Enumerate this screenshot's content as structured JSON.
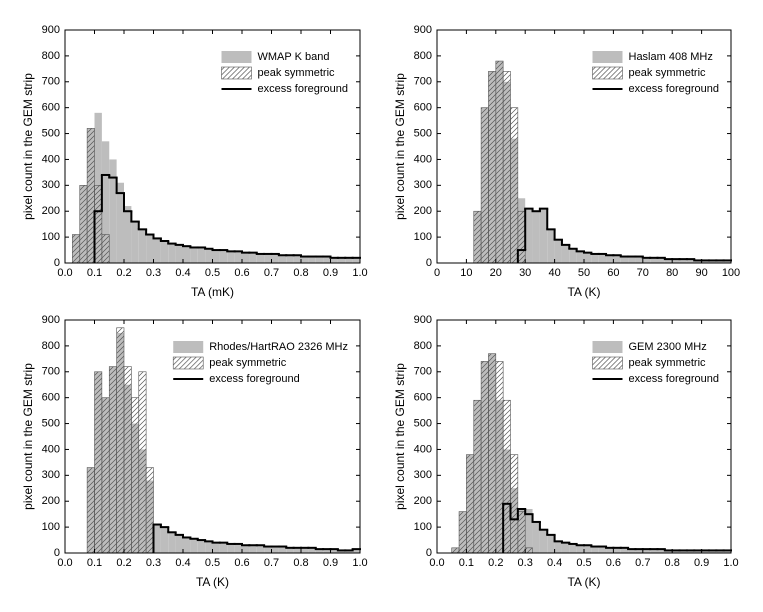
{
  "chart_data": [
    {
      "type": "histogram",
      "xlabel": "TA (mK)",
      "ylabel": "pixel count in the GEM strip",
      "legend": "upper right",
      "xlim": [
        0,
        1
      ],
      "xticks": [
        {
          "value": 0,
          "label": "0.0"
        },
        0.1,
        0.2,
        0.3,
        0.4,
        0.5,
        0.6,
        0.7,
        0.8,
        0.9,
        {
          "value": 1,
          "label": "1.0"
        }
      ],
      "ylim": [
        0,
        900
      ],
      "yticks": [
        0,
        100,
        200,
        300,
        400,
        500,
        600,
        700,
        800,
        900
      ],
      "bins": [
        0,
        0.025,
        0.05,
        0.075,
        0.1,
        0.125,
        0.15,
        0.175,
        0.2,
        0.225,
        0.25,
        0.275,
        0.3,
        0.325,
        0.35,
        0.375,
        0.4,
        0.425,
        0.45,
        0.475,
        0.5,
        0.525,
        0.55,
        0.575,
        0.6,
        0.625,
        0.65,
        0.675,
        0.7,
        0.725,
        0.75,
        0.775,
        0.8,
        0.825,
        0.85,
        0.875,
        0.9,
        0.925,
        0.95,
        0.975,
        1
      ],
      "series": [
        {
          "name": "WMAP K band",
          "style": "filled",
          "color": "#bdbdbd",
          "values": [
            0,
            110,
            300,
            520,
            580,
            470,
            400,
            310,
            220,
            160,
            130,
            110,
            95,
            85,
            75,
            70,
            65,
            60,
            60,
            55,
            50,
            50,
            45,
            45,
            40,
            40,
            35,
            35,
            35,
            30,
            30,
            30,
            25,
            25,
            25,
            25,
            20,
            20,
            20,
            20
          ]
        },
        {
          "name": "peak symmetric",
          "style": "hatched",
          "color": "#555555",
          "values": [
            0,
            110,
            300,
            520,
            300,
            110,
            0,
            0,
            0,
            0,
            0,
            0,
            0,
            0,
            0,
            0,
            0,
            0,
            0,
            0,
            0,
            0,
            0,
            0,
            0,
            0,
            0,
            0,
            0,
            0,
            0,
            0,
            0,
            0,
            0,
            0,
            0,
            0,
            0,
            0
          ]
        },
        {
          "name": "excess foreground",
          "style": "step",
          "color": "#000000",
          "values": [
            null,
            null,
            null,
            null,
            200,
            340,
            330,
            270,
            200,
            160,
            130,
            110,
            95,
            85,
            75,
            70,
            65,
            60,
            60,
            55,
            50,
            50,
            45,
            45,
            40,
            40,
            35,
            35,
            35,
            30,
            30,
            30,
            25,
            25,
            25,
            25,
            20,
            20,
            20,
            20
          ]
        }
      ]
    },
    {
      "type": "histogram",
      "xlabel": "TA (K)",
      "ylabel": "pixel count in the GEM strip",
      "legend": "upper right",
      "xlim": [
        0,
        100
      ],
      "xticks": [
        0,
        10,
        20,
        30,
        40,
        50,
        60,
        70,
        80,
        90,
        100
      ],
      "ylim": [
        0,
        900
      ],
      "yticks": [
        0,
        100,
        200,
        300,
        400,
        500,
        600,
        700,
        800,
        900
      ],
      "bins": [
        0,
        2.5,
        5,
        7.5,
        10,
        12.5,
        15,
        17.5,
        20,
        22.5,
        25,
        27.5,
        30,
        32.5,
        35,
        37.5,
        40,
        42.5,
        45,
        47.5,
        50,
        52.5,
        55,
        57.5,
        60,
        62.5,
        65,
        67.5,
        70,
        72.5,
        75,
        77.5,
        80,
        82.5,
        85,
        87.5,
        90,
        92.5,
        95,
        97.5,
        100
      ],
      "series": [
        {
          "name": "Haslam 408 MHz",
          "style": "filled",
          "color": "#bdbdbd",
          "values": [
            0,
            0,
            0,
            0,
            0,
            200,
            600,
            740,
            780,
            700,
            480,
            250,
            210,
            200,
            210,
            130,
            90,
            70,
            55,
            45,
            40,
            35,
            35,
            30,
            30,
            25,
            25,
            25,
            20,
            20,
            20,
            15,
            15,
            15,
            15,
            10,
            10,
            10,
            10,
            10
          ]
        },
        {
          "name": "peak symmetric",
          "style": "hatched",
          "color": "#555555",
          "values": [
            0,
            0,
            0,
            0,
            0,
            200,
            600,
            740,
            780,
            740,
            600,
            200,
            0,
            0,
            0,
            0,
            0,
            0,
            0,
            0,
            0,
            0,
            0,
            0,
            0,
            0,
            0,
            0,
            0,
            0,
            0,
            0,
            0,
            0,
            0,
            0,
            0,
            0,
            0,
            0
          ]
        },
        {
          "name": "excess foreground",
          "style": "step",
          "color": "#000000",
          "values": [
            null,
            null,
            null,
            null,
            null,
            null,
            null,
            null,
            null,
            null,
            null,
            50,
            210,
            200,
            210,
            130,
            90,
            70,
            55,
            45,
            40,
            35,
            35,
            30,
            30,
            25,
            25,
            25,
            20,
            20,
            20,
            15,
            15,
            15,
            15,
            10,
            10,
            10,
            10,
            10
          ]
        }
      ]
    },
    {
      "type": "histogram",
      "xlabel": "TA (K)",
      "ylabel": "pixel count in the GEM strip",
      "legend": "upper right",
      "xlim": [
        0,
        1
      ],
      "xticks": [
        {
          "value": 0,
          "label": "0.0"
        },
        0.1,
        0.2,
        0.3,
        0.4,
        0.5,
        0.6,
        0.7,
        0.8,
        0.9,
        {
          "value": 1,
          "label": "1.0"
        }
      ],
      "ylim": [
        0,
        900
      ],
      "yticks": [
        0,
        100,
        200,
        300,
        400,
        500,
        600,
        700,
        800,
        900
      ],
      "bins": [
        0,
        0.025,
        0.05,
        0.075,
        0.1,
        0.125,
        0.15,
        0.175,
        0.2,
        0.225,
        0.25,
        0.275,
        0.3,
        0.325,
        0.35,
        0.375,
        0.4,
        0.425,
        0.45,
        0.475,
        0.5,
        0.525,
        0.55,
        0.575,
        0.6,
        0.625,
        0.65,
        0.675,
        0.7,
        0.725,
        0.75,
        0.775,
        0.8,
        0.825,
        0.85,
        0.875,
        0.9,
        0.925,
        0.95,
        0.975,
        1
      ],
      "series": [
        {
          "name": "Rhodes/HartRAO 2326 MHz",
          "style": "filled",
          "color": "#bdbdbd",
          "values": [
            0,
            0,
            0,
            330,
            700,
            600,
            720,
            850,
            650,
            500,
            400,
            280,
            110,
            100,
            80,
            70,
            60,
            55,
            50,
            45,
            40,
            40,
            35,
            35,
            30,
            30,
            30,
            25,
            25,
            25,
            20,
            20,
            20,
            20,
            15,
            15,
            15,
            10,
            10,
            15
          ]
        },
        {
          "name": "peak symmetric",
          "style": "hatched",
          "color": "#555555",
          "values": [
            0,
            0,
            0,
            330,
            700,
            600,
            720,
            870,
            720,
            600,
            700,
            330,
            0,
            0,
            0,
            0,
            0,
            0,
            0,
            0,
            0,
            0,
            0,
            0,
            0,
            0,
            0,
            0,
            0,
            0,
            0,
            0,
            0,
            0,
            0,
            0,
            0,
            0,
            0,
            0
          ]
        },
        {
          "name": "excess foreground",
          "style": "step",
          "color": "#000000",
          "values": [
            null,
            null,
            null,
            null,
            null,
            null,
            null,
            null,
            null,
            null,
            null,
            null,
            110,
            100,
            80,
            70,
            60,
            55,
            50,
            45,
            40,
            40,
            35,
            35,
            30,
            30,
            30,
            25,
            25,
            25,
            20,
            20,
            20,
            20,
            15,
            15,
            15,
            10,
            10,
            15
          ]
        }
      ]
    },
    {
      "type": "histogram",
      "xlabel": "TA (K)",
      "ylabel": "pixel count in the GEM strip",
      "legend": "upper right",
      "xlim": [
        0,
        1
      ],
      "xticks": [
        {
          "value": 0,
          "label": "0.0"
        },
        0.1,
        0.2,
        0.3,
        0.4,
        0.5,
        0.6,
        0.7,
        0.8,
        0.9,
        {
          "value": 1,
          "label": "1.0"
        }
      ],
      "ylim": [
        0,
        900
      ],
      "yticks": [
        0,
        100,
        200,
        300,
        400,
        500,
        600,
        700,
        800,
        900
      ],
      "bins": [
        0,
        0.025,
        0.05,
        0.075,
        0.1,
        0.125,
        0.15,
        0.175,
        0.2,
        0.225,
        0.25,
        0.275,
        0.3,
        0.325,
        0.35,
        0.375,
        0.4,
        0.425,
        0.45,
        0.475,
        0.5,
        0.525,
        0.55,
        0.575,
        0.6,
        0.625,
        0.65,
        0.675,
        0.7,
        0.725,
        0.75,
        0.775,
        0.8,
        0.825,
        0.85,
        0.875,
        0.9,
        0.925,
        0.95,
        0.975,
        1
      ],
      "series": [
        {
          "name": "GEM 2300 MHz",
          "style": "filled",
          "color": "#bdbdbd",
          "values": [
            0,
            0,
            20,
            160,
            380,
            590,
            740,
            770,
            590,
            400,
            250,
            170,
            170,
            120,
            90,
            70,
            45,
            40,
            35,
            30,
            30,
            25,
            25,
            20,
            20,
            20,
            15,
            15,
            15,
            15,
            15,
            10,
            10,
            10,
            10,
            10,
            10,
            10,
            10,
            10
          ]
        },
        {
          "name": "peak symmetric",
          "style": "hatched",
          "color": "#555555",
          "values": [
            0,
            0,
            20,
            160,
            380,
            590,
            740,
            770,
            740,
            590,
            380,
            160,
            20,
            0,
            0,
            0,
            0,
            0,
            0,
            0,
            0,
            0,
            0,
            0,
            0,
            0,
            0,
            0,
            0,
            0,
            0,
            0,
            0,
            0,
            0,
            0,
            0,
            0,
            0,
            0
          ]
        },
        {
          "name": "excess foreground",
          "style": "step",
          "color": "#000000",
          "values": [
            null,
            null,
            null,
            null,
            null,
            null,
            null,
            null,
            null,
            190,
            130,
            170,
            150,
            120,
            90,
            70,
            45,
            40,
            35,
            30,
            30,
            25,
            25,
            20,
            20,
            20,
            15,
            15,
            15,
            15,
            15,
            10,
            10,
            10,
            10,
            10,
            10,
            10,
            10,
            10
          ]
        }
      ]
    }
  ]
}
